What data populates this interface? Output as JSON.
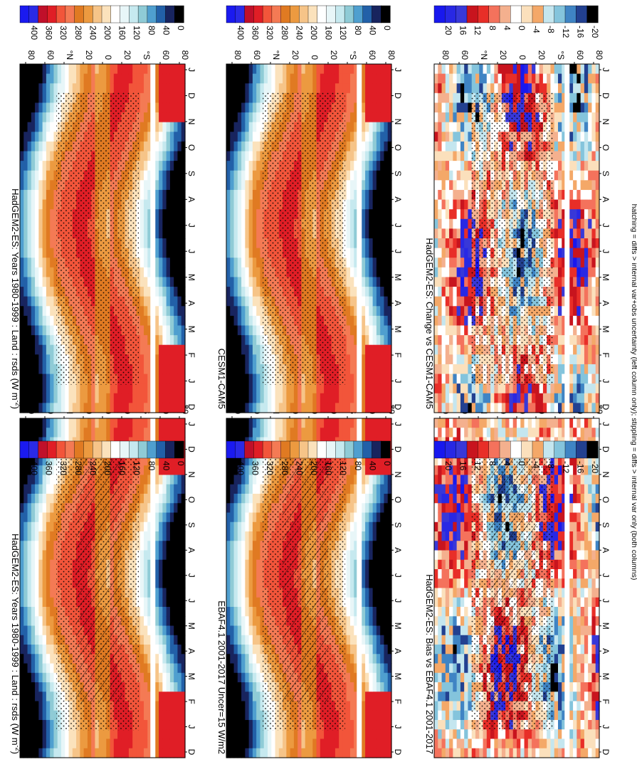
{
  "figure": {
    "orientation": "rotated 90 degrees clockwise",
    "footnote": "hatching = diffs > internal var+obs uncertainty (left column only); stippling = diffs > internal var only (both columns)"
  },
  "chart_data": [
    {
      "type": "heatmap",
      "title": "HadGEM2-ES: Years 1980-1999 : Land : rsds (W m",
      "title_superscript": "-2",
      "title_suffix": ")",
      "xlabel": "",
      "ylabel": "",
      "x": [
        "D",
        "J",
        "F",
        "M",
        "A",
        "M",
        "J",
        "J",
        "A",
        "S",
        "O",
        "N",
        "D",
        "J"
      ],
      "y_ticks": [
        "80",
        "60",
        "°N",
        "20",
        "0",
        "20",
        "°S",
        "60",
        "80"
      ],
      "ylim": [
        -90,
        90
      ],
      "colorbar": {
        "ticks": [
          "400",
          "360",
          "320",
          "280",
          "240",
          "200",
          "160",
          "120",
          "80",
          "40",
          "0"
        ]
      },
      "overlays": [
        "hatching",
        "stippling"
      ]
    },
    {
      "type": "heatmap",
      "title": "HadGEM2-ES: Years 1980-1999 : Land : rsds (W m",
      "title_superscript": "-2",
      "title_suffix": ")",
      "xlabel": "",
      "ylabel": "",
      "x": [
        "D",
        "J",
        "F",
        "M",
        "A",
        "M",
        "J",
        "J",
        "A",
        "S",
        "O",
        "N",
        "D",
        "J"
      ],
      "y_ticks": [
        "80",
        "60",
        "°N",
        "20",
        "0",
        "20",
        "°S",
        "60",
        "80"
      ],
      "ylim": [
        -90,
        90
      ],
      "colorbar": {
        "ticks": [
          "400",
          "360",
          "320",
          "280",
          "240",
          "200",
          "160",
          "120",
          "80",
          "40",
          "0"
        ]
      },
      "overlays": [
        "stippling"
      ]
    },
    {
      "type": "heatmap",
      "title": "EBAF4.1 2001-2017 Uncer=15 W/m2",
      "xlabel": "",
      "ylabel": "",
      "x": [
        "D",
        "J",
        "F",
        "M",
        "A",
        "M",
        "J",
        "J",
        "A",
        "S",
        "O",
        "N",
        "D",
        "J"
      ],
      "y_ticks": [
        "80",
        "60",
        "°N",
        "20",
        "0",
        "20",
        "°S",
        "60",
        "80"
      ],
      "ylim": [
        -90,
        90
      ],
      "colorbar": {
        "ticks": [
          "400",
          "360",
          "320",
          "280",
          "240",
          "200",
          "160",
          "120",
          "80",
          "40",
          "0"
        ]
      },
      "overlays": [
        "hatching",
        "stippling"
      ]
    },
    {
      "type": "heatmap",
      "title": "CESM1-CAM5",
      "xlabel": "",
      "ylabel": "",
      "x": [
        "D",
        "J",
        "F",
        "M",
        "A",
        "M",
        "J",
        "J",
        "A",
        "S",
        "O",
        "N",
        "D",
        "J"
      ],
      "y_ticks": [
        "80",
        "60",
        "°N",
        "20",
        "0",
        "20",
        "°S",
        "60",
        "80"
      ],
      "ylim": [
        -90,
        90
      ],
      "colorbar": {
        "ticks": [
          "400",
          "360",
          "320",
          "280",
          "240",
          "200",
          "160",
          "120",
          "80",
          "40",
          "0"
        ]
      },
      "overlays": [
        "stippling"
      ]
    },
    {
      "type": "heatmap",
      "title": "HadGEM2-ES: Bias vs EBAF4.1 2001-2017",
      "xlabel": "",
      "ylabel": "",
      "x": [
        "D",
        "J",
        "F",
        "M",
        "A",
        "M",
        "J",
        "J",
        "A",
        "S",
        "O",
        "N",
        "D",
        "J"
      ],
      "y_ticks": [
        "80",
        "60",
        "°N",
        "20",
        "0",
        "20",
        "°S",
        "60",
        "80"
      ],
      "ylim": [
        -90,
        90
      ],
      "colorbar": {
        "ticks": [
          "20",
          "16",
          "12",
          "8",
          "4",
          "0",
          "-4",
          "-8",
          "-12",
          "-16",
          "-20"
        ]
      },
      "overlays": [
        "hatching",
        "stippling"
      ]
    },
    {
      "type": "heatmap",
      "title": "HadGEM2-ES: Change vs CESM1-CAM5",
      "xlabel": "",
      "ylabel": "",
      "x": [
        "D",
        "J",
        "F",
        "M",
        "A",
        "M",
        "J",
        "J",
        "A",
        "S",
        "O",
        "N",
        "D",
        "J"
      ],
      "y_ticks": [
        "80",
        "60",
        "°N",
        "20",
        "0",
        "20",
        "°S",
        "60",
        "80"
      ],
      "ylim": [
        -90,
        90
      ],
      "colorbar": {
        "ticks": [
          "20",
          "16",
          "12",
          "8",
          "4",
          "0",
          "-4",
          "-8",
          "-12",
          "-16",
          "-20"
        ]
      },
      "overlays": [
        "stippling"
      ]
    }
  ],
  "colors": {
    "abs_scale": [
      "#1a1af0",
      "#2a2ae6",
      "#c0102a",
      "#e01e26",
      "#f2553a",
      "#f47a54",
      "#e07a22",
      "#ec9a40",
      "#f6c488",
      "#fbe2bc",
      "#ffffff",
      "#e8f6f8",
      "#c6e9ef",
      "#8fcbd6",
      "#4f9fcf",
      "#2260a8",
      "#18245e",
      "#000000"
    ],
    "diff_scale": [
      "#1818ee",
      "#2828e4",
      "#3838d8",
      "#c8141e",
      "#e82e28",
      "#f4725c",
      "#f4b08e",
      "#ffffff",
      "#fbe0bc",
      "#f4a868",
      "#c4e6ef",
      "#84c4dc",
      "#3f84c4",
      "#224090",
      "#000000"
    ]
  }
}
